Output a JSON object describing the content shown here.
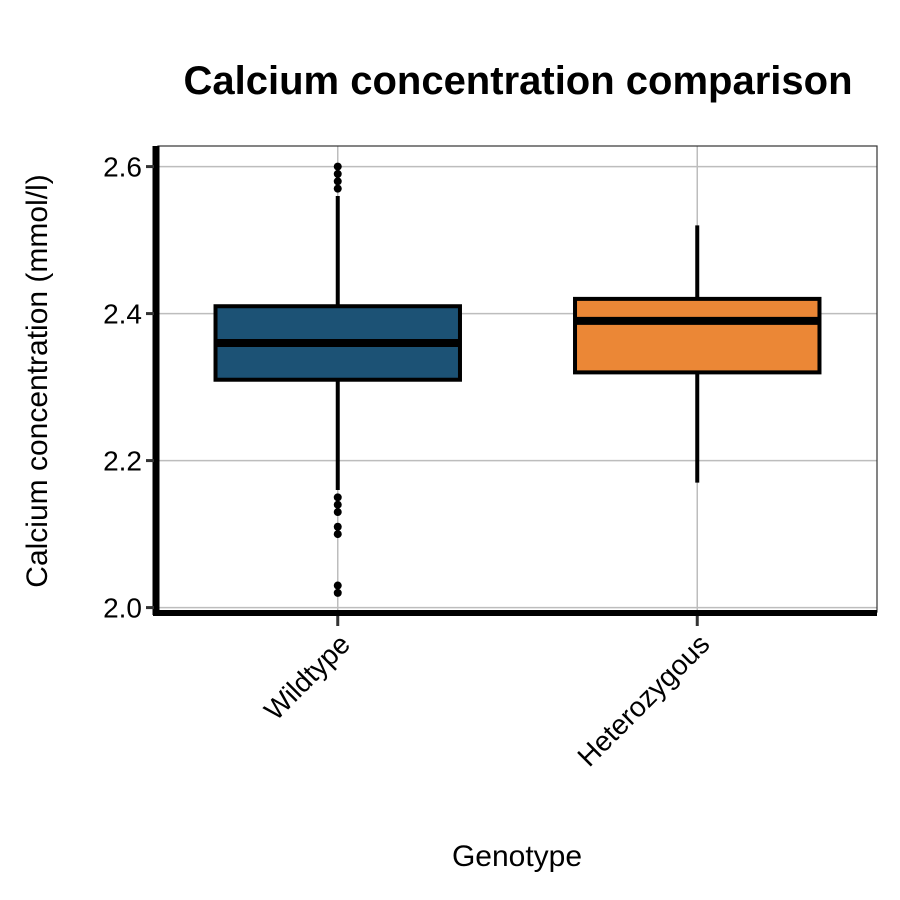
{
  "chart_data": {
    "type": "box",
    "title": "Calcium concentration comparison",
    "xlabel": "Genotype",
    "ylabel": "Calcium concentration (mmol/l)",
    "ylim": [
      1.994,
      2.628
    ],
    "yticks": [
      2.0,
      2.2,
      2.4,
      2.6
    ],
    "ytick_labels": [
      "2.0",
      "2.2",
      "2.4",
      "2.6"
    ],
    "grid": true,
    "categories": [
      "Wildtype",
      "Heterozygous"
    ],
    "boxes": [
      {
        "category": "Wildtype",
        "color": "#1c5275",
        "whisker_low": 2.16,
        "q1": 2.31,
        "median": 2.36,
        "q3": 2.41,
        "whisker_high": 2.56,
        "outliers": [
          2.57,
          2.58,
          2.59,
          2.6,
          2.15,
          2.14,
          2.13,
          2.11,
          2.1,
          2.03,
          2.02
        ]
      },
      {
        "category": "Heterozygous",
        "color": "#eb8736",
        "whisker_low": 2.17,
        "q1": 2.32,
        "median": 2.39,
        "q3": 2.42,
        "whisker_high": 2.52,
        "outliers": []
      }
    ]
  }
}
